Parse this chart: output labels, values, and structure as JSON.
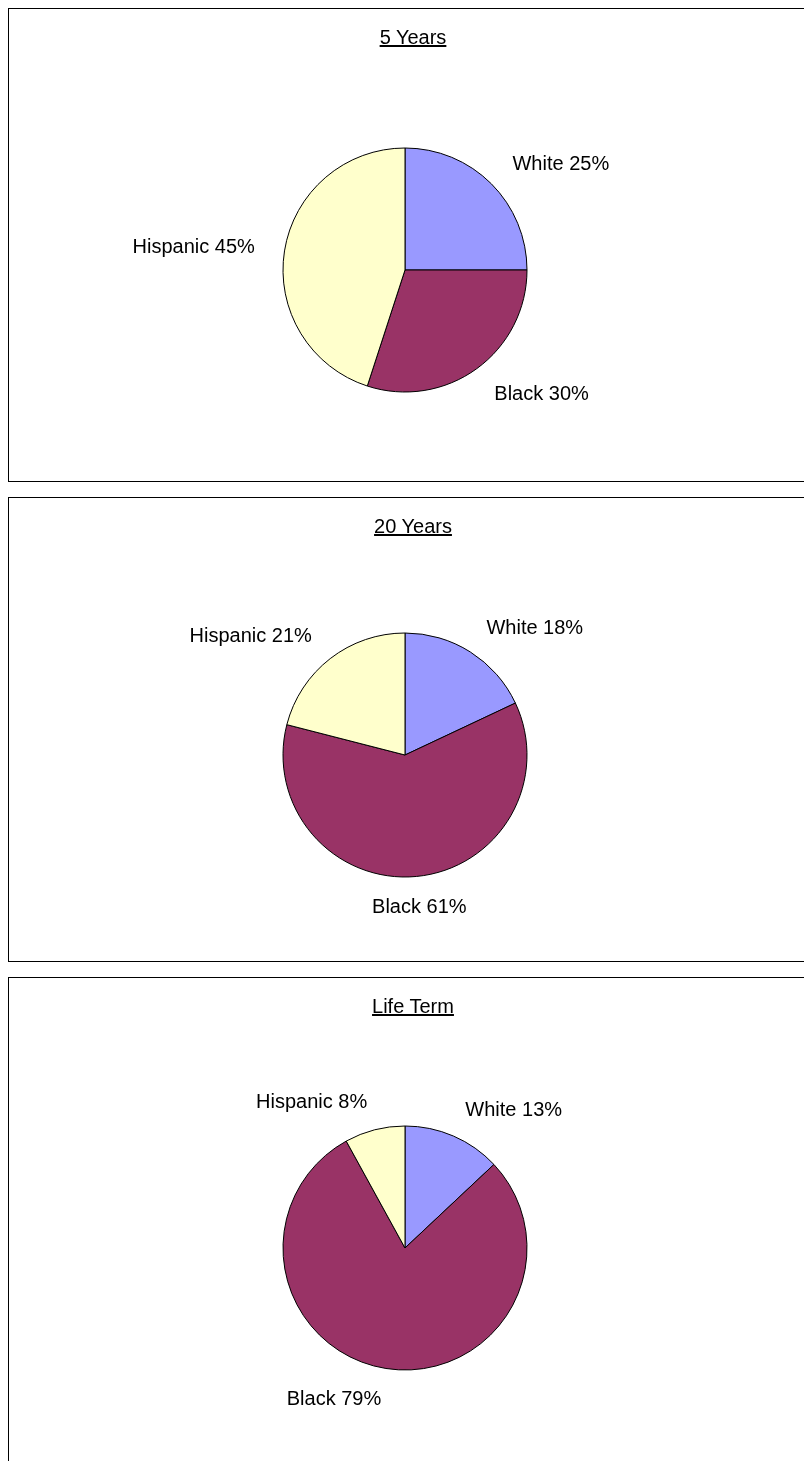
{
  "chart_data": [
    {
      "type": "pie",
      "title": "5 Years",
      "categories": [
        "White",
        "Black",
        "Hispanic"
      ],
      "values": [
        25,
        30,
        45
      ],
      "value_labels": [
        "25%",
        "30%",
        "45%"
      ],
      "colors": [
        "#9999ff",
        "#993366",
        "#ffffcc"
      ]
    },
    {
      "type": "pie",
      "title": "20 Years",
      "categories": [
        "White",
        "Black",
        "Hispanic"
      ],
      "values": [
        18,
        61,
        21
      ],
      "value_labels": [
        "18%",
        "61%",
        "21%"
      ],
      "colors": [
        "#9999ff",
        "#993366",
        "#ffffcc"
      ]
    },
    {
      "type": "pie",
      "title": "Life Term",
      "categories": [
        "White",
        "Black",
        "Hispanic"
      ],
      "values": [
        13,
        79,
        8
      ],
      "value_labels": [
        "13%",
        "79%",
        "8%"
      ],
      "colors": [
        "#9999ff",
        "#993366",
        "#ffffcc"
      ]
    }
  ]
}
